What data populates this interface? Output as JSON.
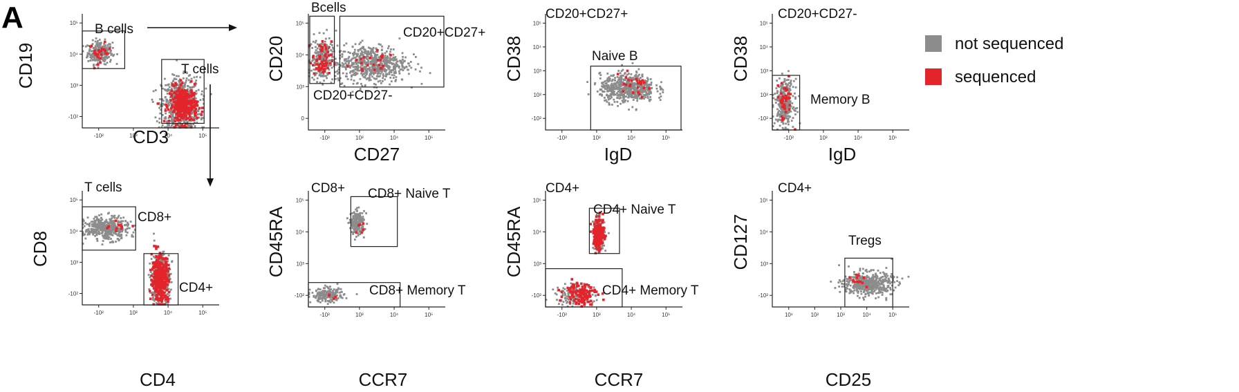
{
  "figure": {
    "panel_letter": "A",
    "colors": {
      "not_sequenced": "#8c8c8c",
      "sequenced": "#e3242b",
      "axis": "#222222"
    },
    "legend": {
      "items": [
        {
          "label": "not sequenced",
          "color": "#8c8c8c"
        },
        {
          "label": "sequenced",
          "color": "#e3242b"
        }
      ]
    }
  },
  "chart_data": [
    {
      "id": "p1",
      "type": "scatter",
      "xlabel": "CD3",
      "ylabel": "CD19",
      "x_ticks": [
        "-10²",
        "10³",
        "10⁴",
        "10⁵"
      ],
      "y_ticks": [
        "-10²",
        "10³",
        "10⁴",
        "10⁵"
      ],
      "xlim": [
        0,
        1
      ],
      "ylim": [
        0,
        1
      ],
      "gates": [
        {
          "label": "B cells",
          "x": [
            0.0,
            0.31
          ],
          "y": [
            0.52,
            0.85
          ]
        },
        {
          "label": "T cells",
          "x": [
            0.58,
            0.89
          ],
          "y": [
            0.04,
            0.6
          ]
        }
      ],
      "populations": [
        {
          "cx": 0.13,
          "cy": 0.66,
          "sx": 0.045,
          "sy": 0.05,
          "n": 260,
          "red": 26,
          "rcx": 0.13,
          "rcy": 0.66,
          "rsx": 0.04,
          "rsy": 0.04
        },
        {
          "cx": 0.72,
          "cy": 0.2,
          "sx": 0.07,
          "sy": 0.12,
          "n": 700,
          "red": 300,
          "rcx": 0.74,
          "rcy": 0.2,
          "rsx": 0.05,
          "rsy": 0.08
        }
      ]
    },
    {
      "id": "p2",
      "type": "scatter",
      "xlabel": "CD27",
      "ylabel": "CD20",
      "x_ticks": [
        "-10²",
        "10³",
        "10⁴",
        "10⁵"
      ],
      "y_ticks": [
        "0",
        "10³",
        "10⁴",
        "10⁵"
      ],
      "xlim": [
        0,
        1
      ],
      "ylim": [
        0,
        1
      ],
      "gates": [
        {
          "label": "Bcells",
          "x": [
            0.01,
            0.19
          ],
          "y": [
            0.4,
            0.98
          ]
        },
        {
          "label": "CD20+CD27+",
          "x": [
            0.23,
            0.99
          ],
          "y": [
            0.37,
            0.98
          ]
        }
      ],
      "free_labels": [
        "CD20+CD27-"
      ],
      "populations": [
        {
          "cx": 0.1,
          "cy": 0.6,
          "sx": 0.04,
          "sy": 0.09,
          "n": 260,
          "red": 60,
          "rcx": 0.1,
          "rcy": 0.6,
          "rsx": 0.035,
          "rsy": 0.08
        },
        {
          "cx": 0.46,
          "cy": 0.57,
          "sx": 0.13,
          "sy": 0.08,
          "n": 650,
          "red": 22,
          "rcx": 0.46,
          "rcy": 0.57,
          "rsx": 0.1,
          "rsy": 0.06
        }
      ]
    },
    {
      "id": "p3",
      "type": "scatter",
      "xlabel": "IgD",
      "ylabel": "CD38",
      "x_ticks": [
        "-10²",
        "10³",
        "10⁴",
        "10⁵"
      ],
      "y_ticks": [
        "-10²",
        "10²",
        "10³",
        "10⁴",
        "10⁵"
      ],
      "xlim": [
        0,
        1
      ],
      "ylim": [
        0,
        1
      ],
      "title": "CD20+CD27+",
      "gates": [
        {
          "label": "Naive B",
          "x": [
            0.33,
            0.99
          ],
          "y": [
            0.0,
            0.55
          ]
        }
      ],
      "populations": [
        {
          "cx": 0.6,
          "cy": 0.36,
          "sx": 0.1,
          "sy": 0.06,
          "n": 600,
          "red": 26,
          "rcx": 0.63,
          "rcy": 0.38,
          "rsx": 0.08,
          "rsy": 0.05
        }
      ]
    },
    {
      "id": "p4",
      "type": "scatter",
      "xlabel": "IgD",
      "ylabel": "CD38",
      "x_ticks": [
        "-10²",
        "10³",
        "10⁴",
        "10⁵"
      ],
      "y_ticks": [
        "-10²",
        "10²",
        "10³",
        "10⁴",
        "10⁵"
      ],
      "xlim": [
        0,
        1
      ],
      "ylim": [
        0,
        1
      ],
      "title": "CD20+CD27-",
      "gates": [
        {
          "label": "Memory B",
          "x": [
            0.0,
            0.2
          ],
          "y": [
            0.0,
            0.47
          ]
        }
      ],
      "populations": [
        {
          "cx": 0.09,
          "cy": 0.23,
          "sx": 0.035,
          "sy": 0.1,
          "n": 320,
          "red": 40,
          "rcx": 0.09,
          "rcy": 0.25,
          "rsx": 0.03,
          "rsy": 0.09
        }
      ]
    },
    {
      "id": "p5",
      "type": "scatter",
      "xlabel": "CD4",
      "ylabel": "CD8",
      "x_ticks": [
        "-10²",
        "10³",
        "10⁴",
        "10⁵"
      ],
      "y_ticks": [
        "-10²",
        "10³",
        "10⁴",
        "10⁵"
      ],
      "xlim": [
        0,
        1
      ],
      "ylim": [
        0,
        1
      ],
      "title": "T cells",
      "gates": [
        {
          "label": "CD8+",
          "x": [
            0.0,
            0.39
          ],
          "y": [
            0.48,
            0.86
          ]
        },
        {
          "label": "CD4+",
          "x": [
            0.45,
            0.7
          ],
          "y": [
            0.0,
            0.45
          ]
        }
      ],
      "populations": [
        {
          "cx": 0.18,
          "cy": 0.67,
          "sx": 0.08,
          "sy": 0.05,
          "n": 420,
          "red": 10,
          "rcx": 0.25,
          "rcy": 0.68,
          "rsx": 0.05,
          "rsy": 0.03
        },
        {
          "cx": 0.57,
          "cy": 0.23,
          "sx": 0.035,
          "sy": 0.11,
          "n": 420,
          "red": 320,
          "rcx": 0.57,
          "rcy": 0.23,
          "rsx": 0.03,
          "rsy": 0.1
        }
      ]
    },
    {
      "id": "p6",
      "type": "scatter",
      "xlabel": "CCR7",
      "ylabel": "CD45RA",
      "x_ticks": [
        "-10²",
        "10³",
        "10⁴",
        "10⁵"
      ],
      "y_ticks": [
        "-10²",
        "10³",
        "10⁴",
        "10⁵"
      ],
      "xlim": [
        0,
        1
      ],
      "ylim": [
        0,
        1
      ],
      "title": "CD8+",
      "gates": [
        {
          "label": "CD8+ Naive T",
          "x": [
            0.31,
            0.65
          ],
          "y": [
            0.52,
            0.95
          ]
        },
        {
          "label": "CD8+ Memory T",
          "x": [
            0.0,
            0.67
          ],
          "y": [
            0.0,
            0.21
          ]
        }
      ],
      "populations": [
        {
          "cx": 0.36,
          "cy": 0.72,
          "sx": 0.025,
          "sy": 0.05,
          "n": 220,
          "red": 6,
          "rcx": 0.37,
          "rcy": 0.7,
          "rsx": 0.02,
          "rsy": 0.03
        },
        {
          "cx": 0.14,
          "cy": 0.1,
          "sx": 0.06,
          "sy": 0.03,
          "n": 200,
          "red": 4,
          "rcx": 0.17,
          "rcy": 0.1,
          "rsx": 0.03,
          "rsy": 0.02
        }
      ]
    },
    {
      "id": "p7",
      "type": "scatter",
      "xlabel": "CCR7",
      "ylabel": "CD45RA",
      "x_ticks": [
        "-10²",
        "10³",
        "10⁴",
        "10⁵"
      ],
      "y_ticks": [
        "-10²",
        "10³",
        "10⁴",
        "10⁵"
      ],
      "xlim": [
        0,
        1
      ],
      "ylim": [
        0,
        1
      ],
      "title": "CD4+",
      "gates": [
        {
          "label": "CD4+ Naive T",
          "x": [
            0.32,
            0.54
          ],
          "y": [
            0.46,
            0.85
          ]
        },
        {
          "label": "CD4+ Memory T",
          "x": [
            0.0,
            0.56
          ],
          "y": [
            0.0,
            0.33
          ]
        }
      ],
      "populations": [
        {
          "cx": 0.39,
          "cy": 0.63,
          "sx": 0.02,
          "sy": 0.07,
          "n": 160,
          "red": 150,
          "rcx": 0.39,
          "rcy": 0.63,
          "rsx": 0.02,
          "rsy": 0.07
        },
        {
          "cx": 0.22,
          "cy": 0.1,
          "sx": 0.07,
          "sy": 0.04,
          "n": 160,
          "red": 110,
          "rcx": 0.26,
          "rcy": 0.12,
          "rsx": 0.06,
          "rsy": 0.05
        }
      ]
    },
    {
      "id": "p8",
      "type": "scatter",
      "xlabel": "CD25",
      "ylabel": "CD127",
      "x_ticks": [
        "10¹",
        "10²",
        "10³",
        "10⁴",
        "10⁵"
      ],
      "y_ticks": [
        "-10²",
        "10³",
        "10⁴",
        "10⁵"
      ],
      "xlim": [
        0,
        1
      ],
      "ylim": [
        0,
        1
      ],
      "title": "CD4+",
      "gates": [
        {
          "label": "Tregs",
          "x": [
            0.53,
            0.88
          ],
          "y": [
            0.0,
            0.42
          ]
        }
      ],
      "populations": [
        {
          "cx": 0.7,
          "cy": 0.2,
          "sx": 0.09,
          "sy": 0.05,
          "n": 500,
          "red": 12,
          "rcx": 0.62,
          "rcy": 0.24,
          "rsx": 0.03,
          "rsy": 0.03
        }
      ]
    }
  ]
}
